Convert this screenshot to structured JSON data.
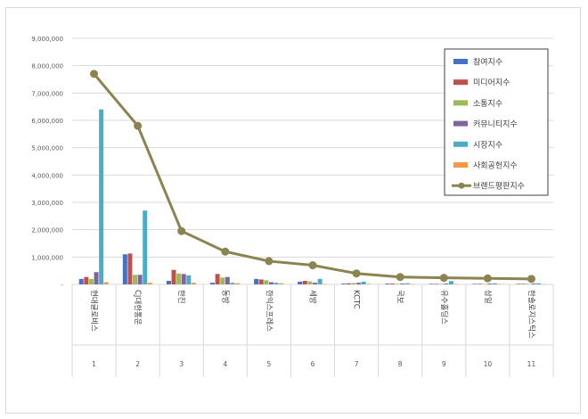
{
  "colors": {
    "참여지수": "#4472c4",
    "미디어지수": "#c0504d",
    "소통지수": "#9bbb59",
    "커뮤니티지수": "#8064a2",
    "시장지수": "#4bacc6",
    "사회공헌지수": "#f79646",
    "브랜드평판지수": "#8c8450"
  },
  "chart_data": {
    "type": "bar",
    "categories": [
      "현대글로비스",
      "CJ대한통운",
      "한진",
      "동방",
      "한익스프레스",
      "세방",
      "KCTC",
      "국보",
      "유수홀딩스",
      "삼일",
      "한솔로지스틱스"
    ],
    "ranks": [
      "1",
      "2",
      "3",
      "4",
      "5",
      "6",
      "7",
      "8",
      "9",
      "10",
      "11"
    ],
    "ylim": [
      0,
      9000000
    ],
    "yticks": [
      "-",
      "1,000,000",
      "2,000,000",
      "3,000,000",
      "4,000,000",
      "5,000,000",
      "6,000,000",
      "7,000,000",
      "8,000,000",
      "9,000,000"
    ],
    "grid": true,
    "legend_position": "top-right",
    "series": [
      {
        "name": "참여지수",
        "values": [
          200000,
          1100000,
          130000,
          60000,
          200000,
          100000,
          30000,
          30000,
          20000,
          20000,
          20000
        ]
      },
      {
        "name": "미디어지수",
        "values": [
          270000,
          1130000,
          530000,
          380000,
          180000,
          130000,
          40000,
          30000,
          20000,
          20000,
          20000
        ]
      },
      {
        "name": "소통지수",
        "values": [
          200000,
          350000,
          400000,
          250000,
          150000,
          110000,
          50000,
          20000,
          20000,
          15000,
          15000
        ]
      },
      {
        "name": "커뮤니티지수",
        "values": [
          450000,
          350000,
          380000,
          270000,
          80000,
          60000,
          60000,
          30000,
          30000,
          30000,
          30000
        ]
      },
      {
        "name": "시장지수",
        "values": [
          6400000,
          2700000,
          330000,
          60000,
          60000,
          200000,
          100000,
          40000,
          120000,
          40000,
          40000
        ]
      },
      {
        "name": "사회공헌지수",
        "values": [
          80000,
          60000,
          60000,
          40000,
          40000,
          10000,
          20000,
          10000,
          10000,
          10000,
          10000
        ]
      }
    ],
    "line_series": {
      "name": "브랜드평판지수",
      "values": [
        7700000,
        5800000,
        1950000,
        1200000,
        850000,
        700000,
        400000,
        270000,
        240000,
        220000,
        200000
      ]
    }
  }
}
